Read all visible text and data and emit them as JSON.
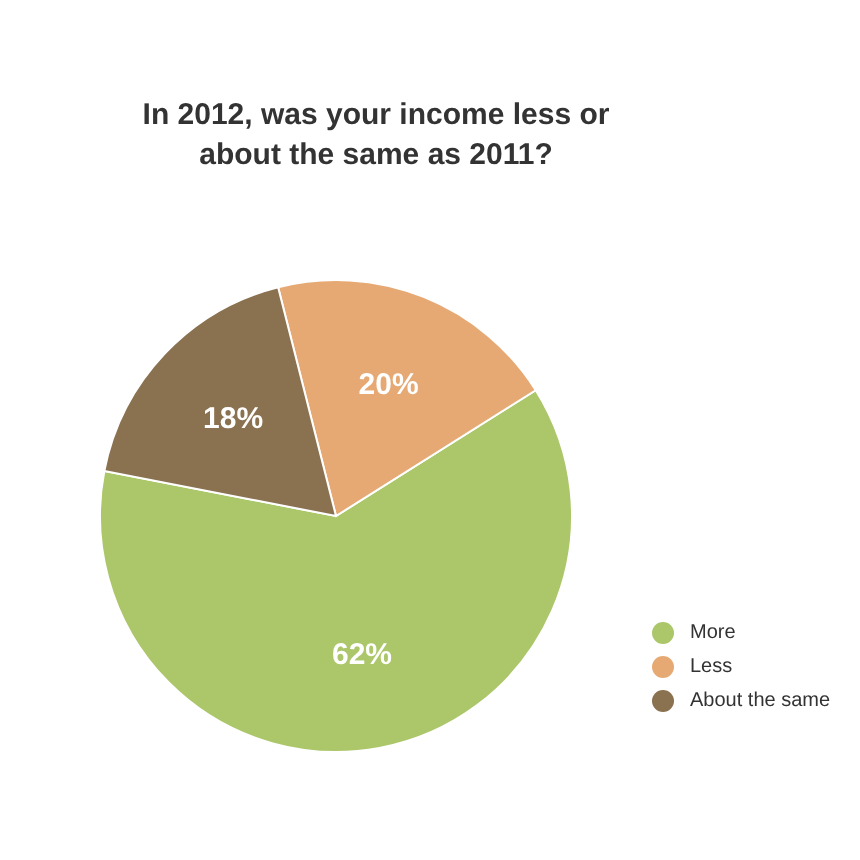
{
  "chart_data": {
    "type": "pie",
    "title": "In 2012, was your income less or about the same as 2011?",
    "categories": [
      "More",
      "Less",
      "About the same"
    ],
    "values": [
      62,
      20,
      18
    ],
    "colors": [
      "#acc66a",
      "#e6a974",
      "#8a7150"
    ],
    "value_labels": [
      "62%",
      "20%",
      "18%"
    ],
    "legend": "bottom right"
  }
}
